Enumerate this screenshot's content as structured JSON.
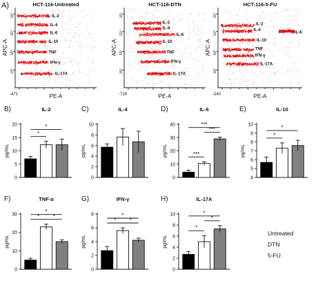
{
  "figure": {
    "panel_a_label": "A)",
    "flow_x_label": "PE-A",
    "flow_y_label": "APC-A",
    "legend": {
      "items": [
        {
          "label": "Untreated",
          "color": "#000000"
        },
        {
          "label": "DTN",
          "color": "#ffffff"
        },
        {
          "label": "5-FU",
          "color": "#808080"
        }
      ]
    }
  },
  "chart_data": [
    {
      "type": "scatter",
      "title": "HCT-116-Untreated",
      "xlabel": "PE-A",
      "ylabel": "APC-A",
      "x_min_tick": "-471",
      "populations": [
        {
          "name": "IL-2"
        },
        {
          "name": "IL-4"
        },
        {
          "name": "IL-6"
        },
        {
          "name": "IL-10"
        },
        {
          "name": "TNF"
        },
        {
          "name": "IFN-γ"
        },
        {
          "name": "IL-17A"
        }
      ]
    },
    {
      "type": "scatter",
      "title": "HCT-116-DTN",
      "xlabel": "PE-A",
      "ylabel": "APC-A",
      "x_min_tick": "-719",
      "populations": [
        {
          "name": "IL-2"
        },
        {
          "name": "IL-4"
        },
        {
          "name": "IL-6"
        },
        {
          "name": "IL-10"
        },
        {
          "name": "TNF"
        },
        {
          "name": "IFN-γ"
        },
        {
          "name": "IL-17A"
        }
      ]
    },
    {
      "type": "scatter",
      "title": "HCT-116-5-FU",
      "xlabel": "PE-A",
      "ylabel": "APC-A",
      "x_min_tick": "-240",
      "populations": [
        {
          "name": "IL-2"
        },
        {
          "name": "IL-4"
        },
        {
          "name": "IL-6"
        },
        {
          "name": "IL-10"
        },
        {
          "name": "TNF"
        },
        {
          "name": "IFN-γ"
        },
        {
          "name": "IL-17A"
        }
      ]
    },
    {
      "type": "bar",
      "panel": "B)",
      "title": "IL-2",
      "ylabel": "pg/mL",
      "ylim": [
        0,
        20
      ],
      "yticks": [
        0,
        5,
        10,
        15,
        20
      ],
      "categories": [
        "Untreated",
        "DTN",
        "5-FU"
      ],
      "values": [
        7,
        12.3,
        12.3
      ],
      "errors": [
        0.9,
        1.3,
        2.1
      ],
      "significance": [
        {
          "from": 0,
          "to": 1,
          "label": "*"
        },
        {
          "from": 0,
          "to": 2,
          "label": "*"
        }
      ]
    },
    {
      "type": "bar",
      "panel": "C)",
      "title": "IL-4",
      "ylabel": "pg/mL",
      "ylim": [
        0,
        10
      ],
      "yticks": [
        0,
        2,
        4,
        6,
        8,
        10
      ],
      "categories": [
        "Untreated",
        "DTN",
        "5-FU"
      ],
      "values": [
        5.7,
        7.6,
        6.7
      ],
      "errors": [
        0.6,
        1.6,
        2.0
      ],
      "significance": []
    },
    {
      "type": "bar",
      "panel": "D)",
      "title": "IL-6",
      "ylabel": "pg/mL",
      "ylim": [
        0,
        40
      ],
      "yticks": [
        0,
        10,
        20,
        30,
        40
      ],
      "categories": [
        "Untreated",
        "DTN",
        "5-FU"
      ],
      "values": [
        4,
        10.5,
        29
      ],
      "errors": [
        1.5,
        1.3,
        1.3
      ],
      "significance": [
        {
          "from": 0,
          "to": 1,
          "label": "***"
        },
        {
          "from": 0,
          "to": 2,
          "label": "***"
        },
        {
          "from": 1,
          "to": 2,
          "label": "***"
        }
      ]
    },
    {
      "type": "bar",
      "panel": "E)",
      "title": "IL-10",
      "ylabel": "pg/mL",
      "ylim": [
        4,
        10
      ],
      "yticks": [
        4,
        5,
        6,
        7,
        8,
        9,
        10
      ],
      "categories": [
        "Untreated",
        "DTN",
        "5-FU"
      ],
      "values": [
        5.7,
        7.3,
        7.6
      ],
      "errors": [
        0.6,
        0.6,
        0.6
      ],
      "significance": [
        {
          "from": 0,
          "to": 1,
          "label": "*"
        },
        {
          "from": 0,
          "to": 2,
          "label": "*"
        }
      ]
    },
    {
      "type": "bar",
      "panel": "F)",
      "title": "TNF-α",
      "ylabel": "pg/mL",
      "ylim": [
        0,
        30
      ],
      "yticks": [
        0,
        10,
        20,
        30
      ],
      "categories": [
        "Untreated",
        "DTN",
        "5-FU"
      ],
      "values": [
        5,
        23,
        15
      ],
      "errors": [
        1,
        1.5,
        1
      ],
      "significance": [
        {
          "from": 0,
          "to": 1,
          "label": "*"
        },
        {
          "from": 0,
          "to": 2,
          "label": "*"
        },
        {
          "from": 1,
          "to": 2,
          "label": "*"
        }
      ]
    },
    {
      "type": "bar",
      "panel": "G)",
      "title": "IFN-γ",
      "ylabel": "pg/mL",
      "ylim": [
        0,
        8
      ],
      "yticks": [
        0,
        2,
        4,
        6,
        8
      ],
      "categories": [
        "Untreated",
        "DTN",
        "5-FU"
      ],
      "values": [
        2.7,
        5.6,
        4.2
      ],
      "errors": [
        0.6,
        0.4,
        0.3
      ],
      "significance": [
        {
          "from": 0,
          "to": 1,
          "label": "*"
        },
        {
          "from": 0,
          "to": 2,
          "label": "*"
        },
        {
          "from": 1,
          "to": 2,
          "label": "*"
        }
      ]
    },
    {
      "type": "bar",
      "panel": "H)",
      "title": "IL-17A",
      "ylabel": "pg/mL",
      "ylim": [
        0,
        10
      ],
      "yticks": [
        0,
        2,
        4,
        6,
        8,
        10
      ],
      "categories": [
        "Untreated",
        "DTN",
        "5-FU"
      ],
      "values": [
        2.7,
        5,
        7.3
      ],
      "errors": [
        0.5,
        1.1,
        0.6
      ],
      "significance": [
        {
          "from": 0,
          "to": 1,
          "label": "*"
        },
        {
          "from": 0,
          "to": 2,
          "label": "*"
        },
        {
          "from": 1,
          "to": 2,
          "label": "*"
        }
      ]
    }
  ]
}
